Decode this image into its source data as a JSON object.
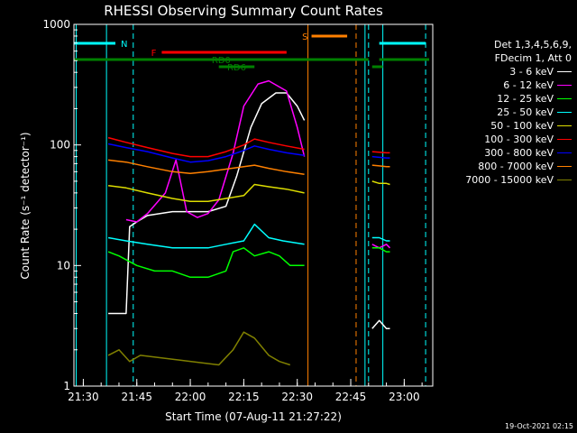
{
  "chart_data": {
    "type": "line",
    "title": "RHESSI Observing Summary Count Rates",
    "xlabel": "Start Time (07-Aug-11 21:27:22)",
    "ylabel": "Count Rate (s⁻¹ detector⁻¹)",
    "xlim": [
      "21:27:22",
      "23:08:00"
    ],
    "ylim": [
      1,
      1000
    ],
    "yscale": "log",
    "x_ticks": [
      "21:30",
      "21:45",
      "22:00",
      "22:15",
      "22:30",
      "22:45",
      "23:00"
    ],
    "y_ticks": [
      "1",
      "10",
      "100",
      "1000"
    ],
    "legend_header": [
      "Det 1,3,4,5,6,9,",
      "FDecim 1, Att 0"
    ],
    "series": [
      {
        "name": "3 - 6 keV",
        "color": "#ffffff",
        "segments": [
          {
            "x": [
              "21:37",
              "21:40",
              "21:42",
              "21:43",
              "21:45",
              "21:48",
              "21:55",
              "22:05",
              "22:10",
              "22:13",
              "22:17",
              "22:20",
              "22:24",
              "22:27",
              "22:30",
              "22:32"
            ],
            "y": [
              4,
              4,
              4,
              21,
              23,
              26,
              28,
              28,
              31,
              55,
              140,
              220,
              270,
              270,
              210,
              160
            ]
          },
          {
            "x": [
              "22:51",
              "22:53",
              "22:55",
              "22:56"
            ],
            "y": [
              3,
              3.5,
              3,
              3
            ]
          }
        ]
      },
      {
        "name": "6 - 12 keV",
        "color": "#ff00ff",
        "segments": [
          {
            "x": [
              "21:42",
              "21:45",
              "21:48",
              "21:53",
              "21:56",
              "21:59",
              "22:02",
              "22:05",
              "22:08",
              "22:12",
              "22:15",
              "22:19",
              "22:22",
              "22:27",
              "22:30",
              "22:32"
            ],
            "y": [
              24,
              23,
              27,
              40,
              75,
              28,
              25,
              27,
              35,
              85,
              210,
              320,
              340,
              280,
              140,
              80
            ]
          },
          {
            "x": [
              "22:51",
              "22:53",
              "22:55",
              "22:56"
            ],
            "y": [
              15,
              14,
              15,
              14
            ]
          }
        ]
      },
      {
        "name": "12 - 25 keV",
        "color": "#00ff00",
        "segments": [
          {
            "x": [
              "21:37",
              "21:40",
              "21:45",
              "21:50",
              "21:55",
              "22:00",
              "22:05",
              "22:10",
              "22:12",
              "22:15",
              "22:18",
              "22:22",
              "22:25",
              "22:28",
              "22:32"
            ],
            "y": [
              13,
              12,
              10,
              9,
              9,
              8,
              8,
              9,
              13,
              14,
              12,
              13,
              12,
              10,
              10
            ]
          },
          {
            "x": [
              "22:51",
              "22:53",
              "22:55",
              "22:56"
            ],
            "y": [
              14,
              14,
              13,
              13
            ]
          }
        ]
      },
      {
        "name": "25 - 50 keV",
        "color": "#00ffff",
        "segments": [
          {
            "x": [
              "21:37",
              "21:42",
              "21:48",
              "21:55",
              "22:00",
              "22:05",
              "22:10",
              "22:15",
              "22:18",
              "22:22",
              "22:26",
              "22:32"
            ],
            "y": [
              17,
              16,
              15,
              14,
              14,
              14,
              15,
              16,
              22,
              17,
              16,
              15
            ]
          },
          {
            "x": [
              "22:51",
              "22:53",
              "22:55",
              "22:56"
            ],
            "y": [
              17,
              17,
              16,
              16
            ]
          }
        ]
      },
      {
        "name": "50 - 100 keV",
        "color": "#dddd00",
        "segments": [
          {
            "x": [
              "21:37",
              "21:42",
              "21:48",
              "21:55",
              "22:00",
              "22:05",
              "22:10",
              "22:15",
              "22:18",
              "22:22",
              "22:27",
              "22:32"
            ],
            "y": [
              46,
              44,
              40,
              36,
              34,
              34,
              36,
              38,
              47,
              45,
              43,
              40
            ]
          },
          {
            "x": [
              "22:51",
              "22:53",
              "22:55",
              "22:56"
            ],
            "y": [
              50,
              48,
              48,
              47
            ]
          }
        ]
      },
      {
        "name": "100 - 300 keV",
        "color": "#ff0000",
        "segments": [
          {
            "x": [
              "21:37",
              "21:42",
              "21:48",
              "21:55",
              "22:00",
              "22:05",
              "22:10",
              "22:15",
              "22:18",
              "22:22",
              "22:27",
              "22:32"
            ],
            "y": [
              115,
              105,
              95,
              85,
              80,
              80,
              88,
              100,
              112,
              105,
              98,
              92
            ]
          },
          {
            "x": [
              "22:51",
              "22:53",
              "22:55",
              "22:56"
            ],
            "y": [
              88,
              87,
              86,
              86
            ]
          }
        ]
      },
      {
        "name": "300 - 800 keV",
        "color": "#0000ff",
        "segments": [
          {
            "x": [
              "21:37",
              "21:42",
              "21:48",
              "21:55",
              "22:00",
              "22:05",
              "22:10",
              "22:15",
              "22:18",
              "22:22",
              "22:27",
              "22:32"
            ],
            "y": [
              102,
              95,
              88,
              78,
              72,
              74,
              80,
              90,
              98,
              92,
              86,
              82
            ]
          },
          {
            "x": [
              "22:51",
              "22:53",
              "22:55",
              "22:56"
            ],
            "y": [
              80,
              79,
              78,
              78
            ]
          }
        ]
      },
      {
        "name": "800 - 7000 keV",
        "color": "#ff8000",
        "segments": [
          {
            "x": [
              "21:37",
              "21:42",
              "21:48",
              "21:55",
              "22:00",
              "22:05",
              "22:10",
              "22:15",
              "22:18",
              "22:22",
              "22:27",
              "22:32"
            ],
            "y": [
              75,
              72,
              66,
              60,
              58,
              60,
              63,
              66,
              68,
              64,
              60,
              57
            ]
          },
          {
            "x": [
              "22:51",
              "22:53",
              "22:55",
              "22:56"
            ],
            "y": [
              68,
              67,
              66,
              66
            ]
          }
        ]
      },
      {
        "name": "7000 - 15000 keV",
        "color": "#808000",
        "segments": [
          {
            "x": [
              "21:37",
              "21:40",
              "21:43",
              "21:46",
              "22:08",
              "22:12",
              "22:15",
              "22:18",
              "22:22",
              "22:25",
              "22:28"
            ],
            "y": [
              1.8,
              2,
              1.6,
              1.8,
              1.5,
              2,
              2.8,
              2.5,
              1.8,
              1.6,
              1.5
            ]
          }
        ]
      }
    ],
    "flag_bars": [
      {
        "label": "N",
        "color": "#00ffff",
        "ranges": [
          [
            "21:27:22",
            "21:39:00"
          ],
          [
            "22:53:00",
            "23:06:00"
          ]
        ],
        "level": 0
      },
      {
        "label": "F",
        "color": "#ff0000",
        "ranges": [
          [
            "21:52:00",
            "22:27:00"
          ]
        ],
        "level": 1
      },
      {
        "label": "S",
        "color": "#ff8000",
        "ranges": [
          [
            "22:34:00",
            "22:44:00"
          ]
        ],
        "level": -1
      },
      {
        "label": "RD0",
        "color": "#008000",
        "ranges": [
          [
            "21:27:22",
            "22:50:00"
          ],
          [
            "22:53:00",
            "23:07:00"
          ]
        ],
        "level": 2
      },
      {
        "label": "RD6",
        "color": "#008000",
        "ranges": [
          [
            "22:08:00",
            "22:18:00"
          ],
          [
            "22:51:00",
            "22:54:00"
          ]
        ],
        "level": 3
      }
    ],
    "vertical_markers": [
      {
        "x": "21:28:00",
        "color": "#00ffff",
        "style": "solid"
      },
      {
        "x": "21:36:30",
        "color": "#00ffff",
        "style": "solid"
      },
      {
        "x": "21:44:00",
        "color": "#00ffff",
        "style": "dashed"
      },
      {
        "x": "22:33:00",
        "color": "#ff8000",
        "style": "solid"
      },
      {
        "x": "22:46:30",
        "color": "#ff8000",
        "style": "dashed"
      },
      {
        "x": "22:49:00",
        "color": "#00ffff",
        "style": "solid"
      },
      {
        "x": "22:50:00",
        "color": "#00ffff",
        "style": "dashed"
      },
      {
        "x": "22:54:00",
        "color": "#00ffff",
        "style": "solid"
      },
      {
        "x": "23:06:00",
        "color": "#00ffff",
        "style": "dashed"
      }
    ],
    "legend_placement": "right",
    "grid": false
  },
  "footer": {
    "timestamp": "19-Oct-2021 02:15"
  }
}
